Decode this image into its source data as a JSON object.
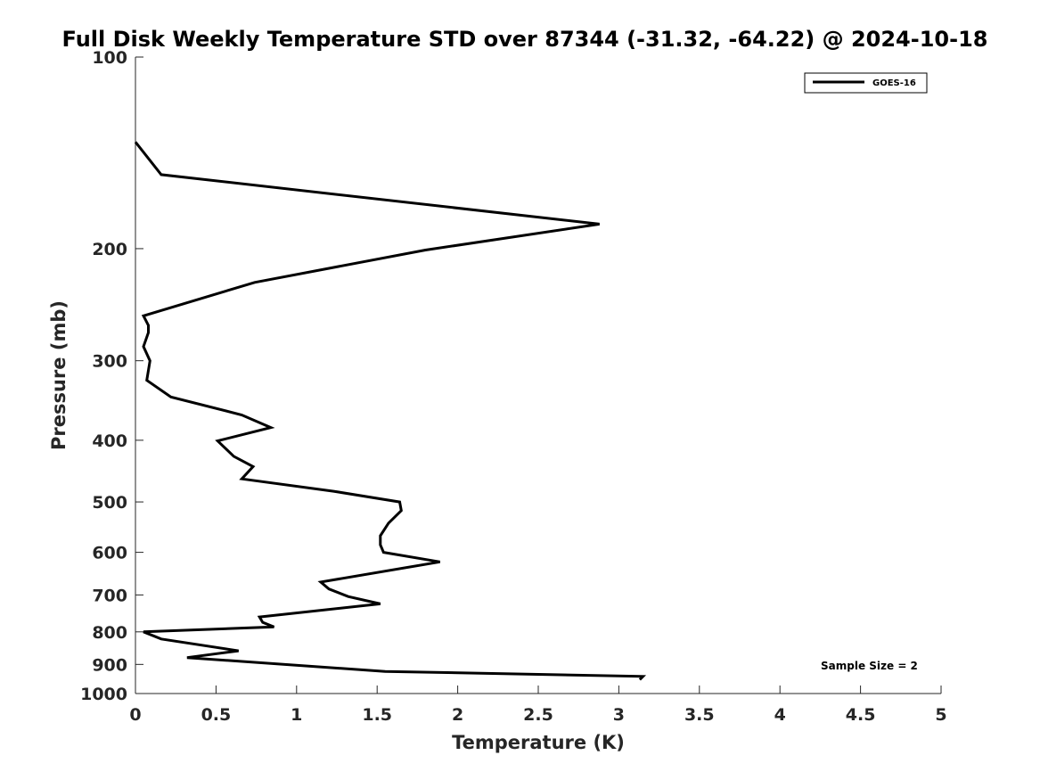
{
  "chart_data": {
    "type": "line",
    "title": "Full Disk Weekly Temperature STD over 87344 (-31.32, -64.22) @ 2024-10-18",
    "xlabel": "Temperature (K)",
    "ylabel": "Pressure (mb)",
    "xlim": [
      0,
      5
    ],
    "ylim": [
      100,
      1000
    ],
    "yscale": "log",
    "yreversed": true,
    "x_ticks": [
      "0",
      "0.5",
      "1",
      "1.5",
      "2",
      "2.5",
      "3",
      "3.5",
      "4",
      "4.5",
      "5"
    ],
    "y_ticks": [
      "100",
      "200",
      "300",
      "400",
      "500",
      "600",
      "700",
      "800",
      "900",
      "1000"
    ],
    "grid": false,
    "legend_position": "top-right",
    "series": [
      {
        "name": "GOES-16",
        "color": "#000000",
        "points": [
          {
            "x": 0.0,
            "y": 136
          },
          {
            "x": 0.16,
            "y": 153
          },
          {
            "x": 2.88,
            "y": 183
          },
          {
            "x": 1.8,
            "y": 201
          },
          {
            "x": 0.74,
            "y": 226
          },
          {
            "x": 0.05,
            "y": 255
          },
          {
            "x": 0.08,
            "y": 264
          },
          {
            "x": 0.08,
            "y": 271
          },
          {
            "x": 0.05,
            "y": 285
          },
          {
            "x": 0.09,
            "y": 300
          },
          {
            "x": 0.07,
            "y": 322
          },
          {
            "x": 0.22,
            "y": 342
          },
          {
            "x": 0.66,
            "y": 365
          },
          {
            "x": 0.84,
            "y": 382
          },
          {
            "x": 0.51,
            "y": 401
          },
          {
            "x": 0.61,
            "y": 424
          },
          {
            "x": 0.73,
            "y": 440
          },
          {
            "x": 0.66,
            "y": 460
          },
          {
            "x": 1.23,
            "y": 481
          },
          {
            "x": 1.64,
            "y": 500
          },
          {
            "x": 1.65,
            "y": 516
          },
          {
            "x": 1.57,
            "y": 540
          },
          {
            "x": 1.52,
            "y": 565
          },
          {
            "x": 1.52,
            "y": 584
          },
          {
            "x": 1.54,
            "y": 600
          },
          {
            "x": 1.89,
            "y": 621
          },
          {
            "x": 1.15,
            "y": 668
          },
          {
            "x": 1.2,
            "y": 685
          },
          {
            "x": 1.32,
            "y": 704
          },
          {
            "x": 1.52,
            "y": 723
          },
          {
            "x": 0.77,
            "y": 758
          },
          {
            "x": 0.79,
            "y": 773
          },
          {
            "x": 0.86,
            "y": 786
          },
          {
            "x": 0.05,
            "y": 800
          },
          {
            "x": 0.16,
            "y": 821
          },
          {
            "x": 0.64,
            "y": 857
          },
          {
            "x": 0.32,
            "y": 878
          },
          {
            "x": 1.55,
            "y": 923
          },
          {
            "x": 3.15,
            "y": 940
          },
          {
            "x": 3.13,
            "y": 951
          }
        ]
      }
    ],
    "annotations": [
      "Sample Size = 2"
    ]
  }
}
